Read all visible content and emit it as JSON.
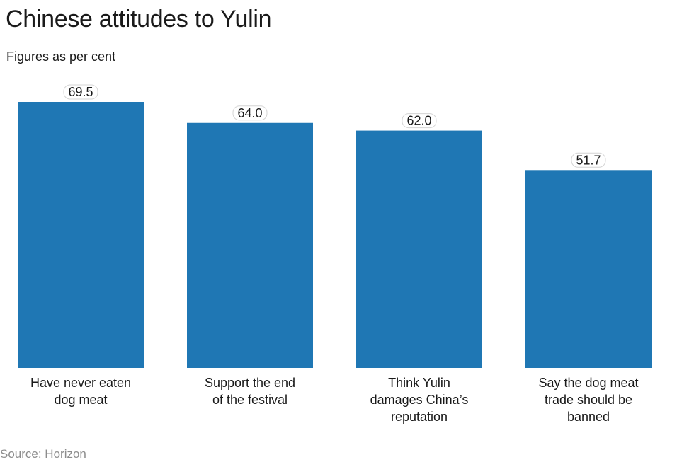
{
  "title": "Chinese attitudes to Yulin",
  "subtitle": "Figures as per cent",
  "source": "Source: Horizon",
  "colors": {
    "bar": "#1f77b4",
    "text": "#1a1a1a",
    "source": "#8c8c8c"
  },
  "chart_data": {
    "type": "bar",
    "title": "Chinese attitudes to Yulin",
    "subtitle": "Figures as per cent",
    "xlabel": "",
    "ylabel": "",
    "ylim": [
      0,
      69.5
    ],
    "grid": false,
    "categories": [
      [
        "Have never eaten",
        "dog meat"
      ],
      [
        "Support the end",
        "of the festival"
      ],
      [
        "Think Yulin",
        "damages China’s",
        "reputation"
      ],
      [
        "Say the dog meat",
        "trade should be",
        "banned"
      ]
    ],
    "values": [
      69.5,
      64.0,
      62.0,
      51.7
    ],
    "data_labels": [
      "69.5",
      "64.0",
      "62.0",
      "51.7"
    ]
  }
}
